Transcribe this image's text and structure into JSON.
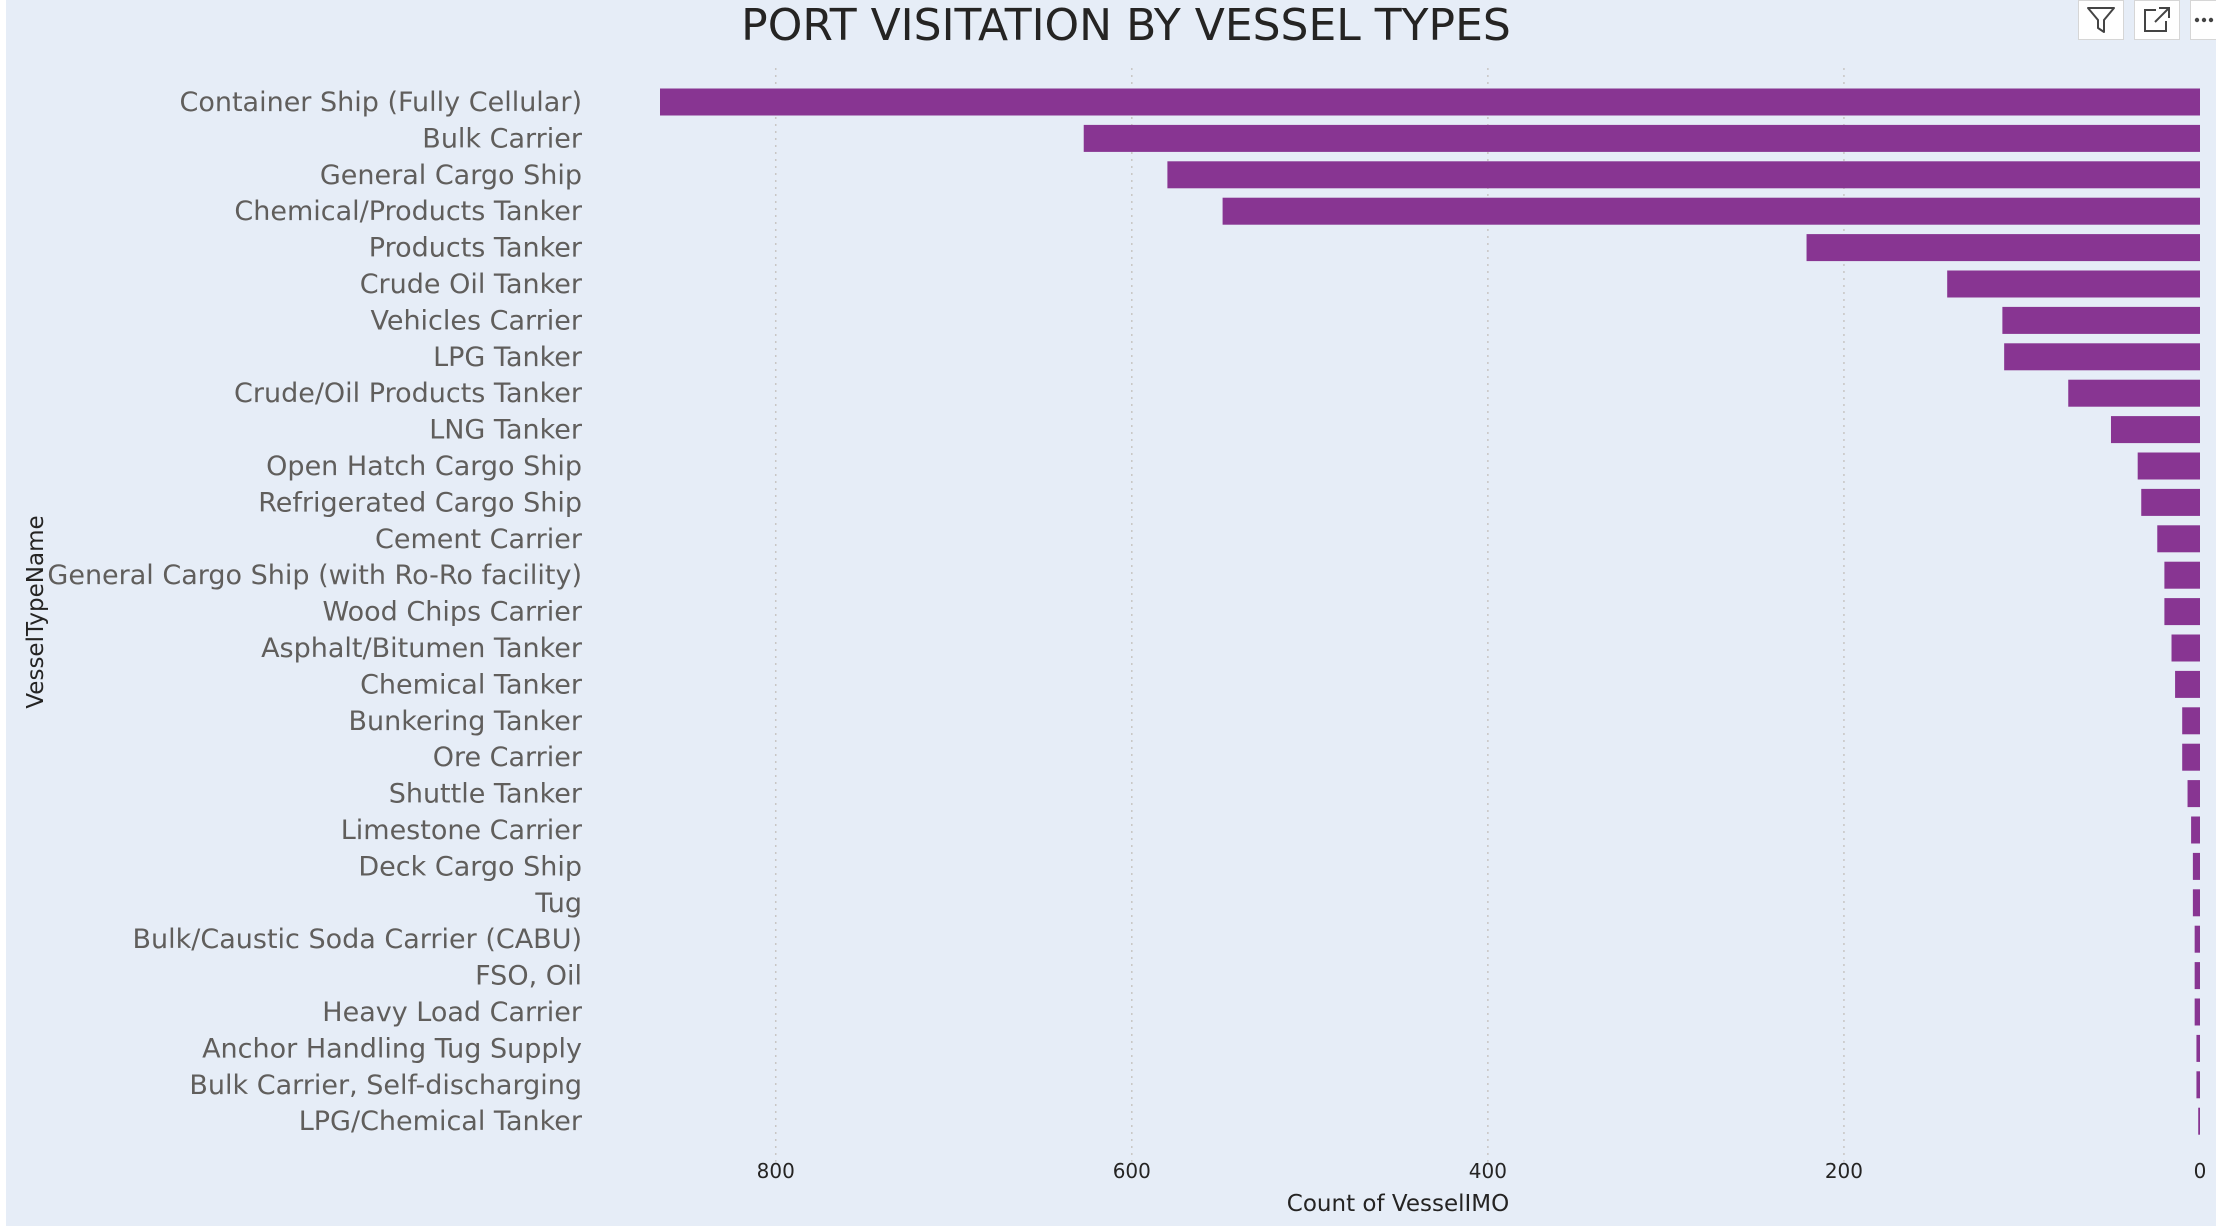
{
  "colors": {
    "bar": "#883592",
    "background": "#e6edf7"
  },
  "toolbar": {
    "filter_icon": "filter-icon",
    "focus_icon": "focus-mode-icon",
    "more_icon": "more-options-icon"
  },
  "chart_data": {
    "type": "bar",
    "orientation": "horizontal",
    "x_reversed": true,
    "title": "PORT VISITATION BY VESSEL TYPES",
    "xlabel": "Count of VesselIMO",
    "ylabel": "VesselTypeName",
    "xlim": [
      0,
      865
    ],
    "xticks": [
      800,
      600,
      400,
      200,
      0
    ],
    "grid": true,
    "categories": [
      "Container Ship (Fully Cellular)",
      "Bulk Carrier",
      "General Cargo Ship",
      "Chemical/Products Tanker",
      "Products Tanker",
      "Crude Oil Tanker",
      "Vehicles Carrier",
      "LPG Tanker",
      "Crude/Oil Products Tanker",
      "LNG Tanker",
      "Open Hatch Cargo Ship",
      "Refrigerated Cargo Ship",
      "Cement Carrier",
      "General Cargo Ship (with Ro-Ro facility)",
      "Wood Chips Carrier",
      "Asphalt/Bitumen Tanker",
      "Chemical Tanker",
      "Bunkering Tanker",
      "Ore Carrier",
      "Shuttle Tanker",
      "Limestone Carrier",
      "Deck Cargo Ship",
      "Tug",
      "Bulk/Caustic Soda Carrier (CABU)",
      "FSO, Oil",
      "Heavy Load Carrier",
      "Anchor Handling Tug Supply",
      "Bulk Carrier, Self-discharging",
      "LPG/Chemical Tanker"
    ],
    "values": [
      865,
      627,
      580,
      549,
      221,
      142,
      111,
      110,
      74,
      50,
      35,
      33,
      24,
      20,
      20,
      16,
      14,
      10,
      10,
      7,
      5,
      4,
      4,
      3,
      3,
      3,
      2,
      2,
      1
    ]
  }
}
